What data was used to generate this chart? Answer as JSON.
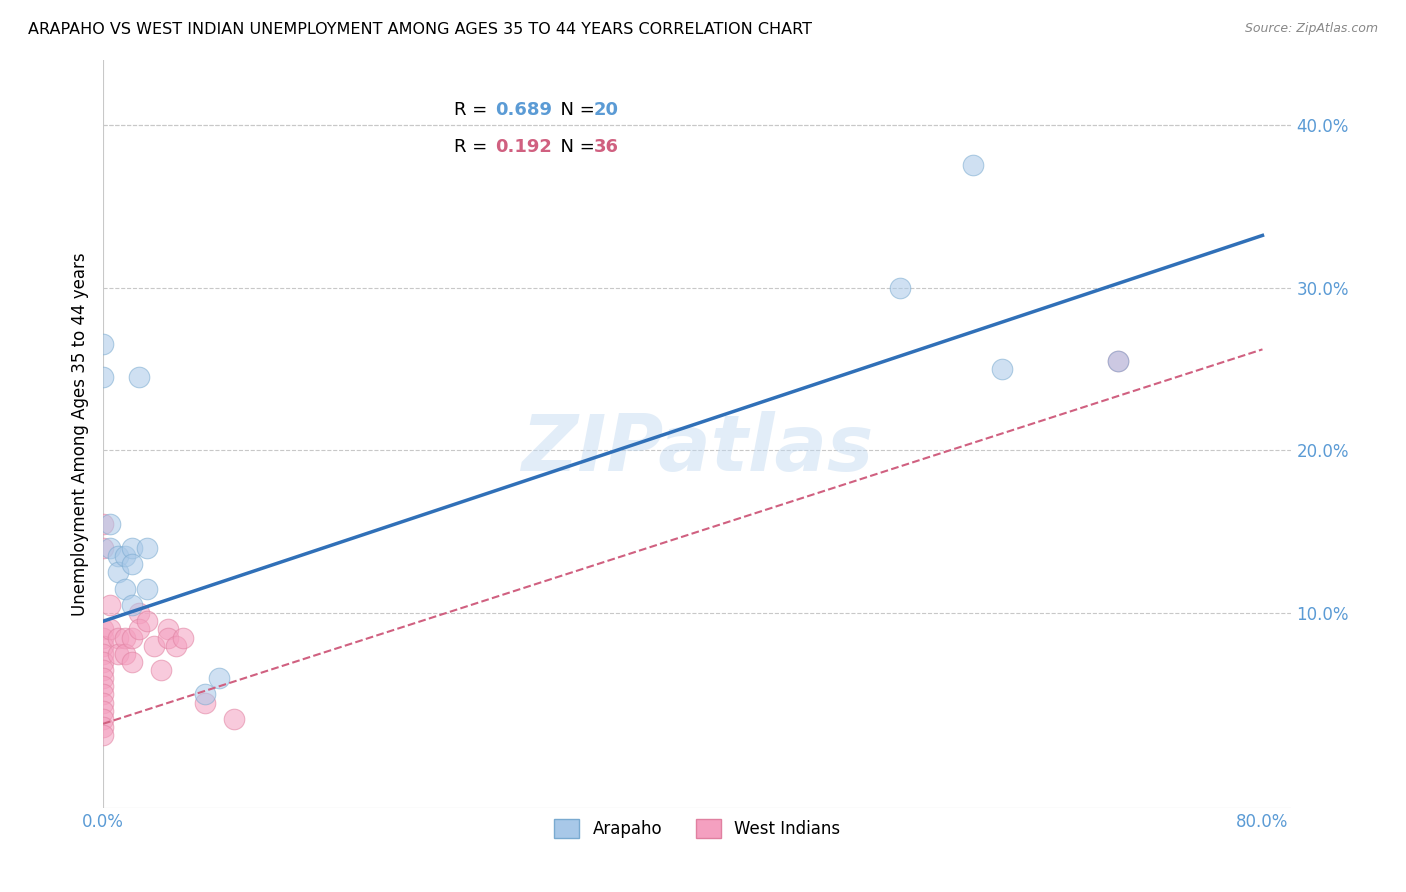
{
  "title": "ARAPAHO VS WEST INDIAN UNEMPLOYMENT AMONG AGES 35 TO 44 YEARS CORRELATION CHART",
  "source": "Source: ZipAtlas.com",
  "ylabel": "Unemployment Among Ages 35 to 44 years",
  "watermark": "ZIPatlas",
  "xlim": [
    0.0,
    0.82
  ],
  "ylim": [
    -0.02,
    0.44
  ],
  "xtick_positions": [
    0.0,
    0.8
  ],
  "xtick_labels": [
    "0.0%",
    "80.0%"
  ],
  "ytick_positions": [
    0.1,
    0.2,
    0.3,
    0.4
  ],
  "ytick_labels": [
    "10.0%",
    "20.0%",
    "30.0%",
    "40.0%"
  ],
  "grid_yticks": [
    0.1,
    0.2,
    0.3,
    0.4
  ],
  "legend_arapaho_R": "0.689",
  "legend_arapaho_N": "20",
  "legend_west_indian_R": "0.192",
  "legend_west_indian_N": "36",
  "arapaho_color": "#a8c8e8",
  "west_indian_color": "#f4a0c0",
  "arapaho_line_color": "#3070b8",
  "west_indian_line_color": "#d06080",
  "arapaho_edge_color": "#7aaad0",
  "west_indian_edge_color": "#e080a0",
  "grid_color": "#c8c8c8",
  "background_color": "#ffffff",
  "tick_color": "#5b9bd5",
  "arapaho_blue_text": "#5b9bd5",
  "west_pink_text": "#d06080",
  "arapaho_x": [
    0.0,
    0.0,
    0.005,
    0.005,
    0.01,
    0.01,
    0.015,
    0.015,
    0.02,
    0.02,
    0.02,
    0.025,
    0.03,
    0.03,
    0.07,
    0.08,
    0.55,
    0.6,
    0.62,
    0.7
  ],
  "arapaho_y": [
    0.265,
    0.245,
    0.155,
    0.14,
    0.135,
    0.125,
    0.135,
    0.115,
    0.14,
    0.13,
    0.105,
    0.245,
    0.14,
    0.115,
    0.05,
    0.06,
    0.3,
    0.375,
    0.25,
    0.255
  ],
  "blue_line_x0": 0.0,
  "blue_line_y0": 0.095,
  "blue_line_x1": 0.8,
  "blue_line_y1": 0.332,
  "pink_line_x0": 0.0,
  "pink_line_y0": 0.032,
  "pink_line_x1": 0.8,
  "pink_line_y1": 0.262,
  "west_indian_x": [
    0.0,
    0.0,
    0.0,
    0.0,
    0.0,
    0.0,
    0.0,
    0.0,
    0.0,
    0.0,
    0.0,
    0.0,
    0.0,
    0.0,
    0.0,
    0.0,
    0.005,
    0.005,
    0.01,
    0.01,
    0.015,
    0.015,
    0.02,
    0.02,
    0.025,
    0.025,
    0.03,
    0.035,
    0.04,
    0.045,
    0.045,
    0.05,
    0.055,
    0.07,
    0.09,
    0.7
  ],
  "west_indian_y": [
    0.09,
    0.085,
    0.08,
    0.075,
    0.07,
    0.065,
    0.06,
    0.055,
    0.05,
    0.045,
    0.04,
    0.035,
    0.03,
    0.025,
    0.155,
    0.14,
    0.105,
    0.09,
    0.085,
    0.075,
    0.085,
    0.075,
    0.085,
    0.07,
    0.1,
    0.09,
    0.095,
    0.08,
    0.065,
    0.09,
    0.085,
    0.08,
    0.085,
    0.045,
    0.035,
    0.255
  ]
}
